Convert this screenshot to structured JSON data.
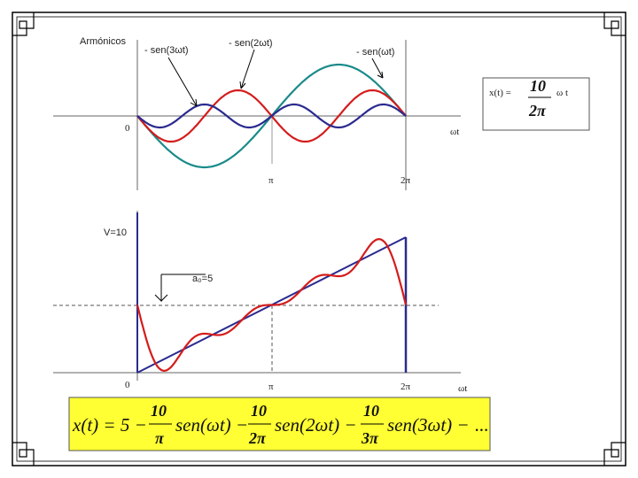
{
  "top_plot": {
    "y_label": "Armónicos",
    "curve_labels": [
      "- sen(3ωt)",
      "- sen(2ωt)",
      "- sen(ωt)"
    ],
    "origin": "0",
    "ticks": [
      "π",
      "2π"
    ],
    "x_label": "ωt"
  },
  "definition": {
    "lhs": "x(t) =",
    "numerator": "10",
    "denominator": "2π",
    "rhs": "ω t"
  },
  "bottom_plot": {
    "y_label": "V=10",
    "mean_label": "a₀=5",
    "origin": "0",
    "ticks": [
      "π",
      "2π"
    ],
    "x_label": "ωt"
  },
  "formula": {
    "lhs": "x(t) = 5 −",
    "terms": [
      {
        "numerator": "10",
        "denominator": "π",
        "function": "sen(ωt) −"
      },
      {
        "numerator": "10",
        "denominator": "2π",
        "function": "sen(2ωt) −"
      },
      {
        "numerator": "10",
        "denominator": "3π",
        "function": "sen(3ωt) −"
      }
    ],
    "ellipsis": "..."
  }
}
